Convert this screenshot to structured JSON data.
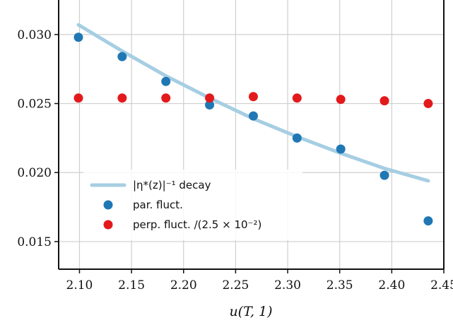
{
  "chart_data": {
    "type": "scatter",
    "title": "",
    "xlabel": "u(T, 1)",
    "ylabel": "",
    "xlim": [
      2.08,
      2.45
    ],
    "ylim": [
      0.013,
      0.0325
    ],
    "grid": true,
    "legend_placement": "lower-left",
    "xticks": [
      2.1,
      2.15,
      2.2,
      2.25,
      2.3,
      2.35,
      2.4,
      2.45
    ],
    "xtick_labels": [
      "2.10",
      "2.15",
      "2.20",
      "2.25",
      "2.30",
      "2.35",
      "2.40",
      "2.45"
    ],
    "yticks": [
      0.015,
      0.02,
      0.025,
      0.03
    ],
    "ytick_labels": [
      "0.015",
      "0.020",
      "0.025",
      "0.030"
    ],
    "series": [
      {
        "name": "|η*(z)|⁻¹ decay",
        "kind": "line",
        "color": "#a6cee3",
        "x": [
          2.099,
          2.141,
          2.183,
          2.225,
          2.267,
          2.309,
          2.351,
          2.393,
          2.435
        ],
        "y": [
          0.0307,
          0.0288,
          0.027,
          0.0254,
          0.0239,
          0.0226,
          0.0214,
          0.0203,
          0.0194
        ]
      },
      {
        "name": "par. fluct.",
        "kind": "scatter",
        "color": "#1f78b4",
        "x": [
          2.099,
          2.141,
          2.183,
          2.225,
          2.267,
          2.309,
          2.351,
          2.393,
          2.435
        ],
        "y": [
          0.0298,
          0.0284,
          0.0266,
          0.0249,
          0.0241,
          0.0225,
          0.0217,
          0.0198,
          0.0165
        ]
      },
      {
        "name": "perp. fluct. /(2.5 × 10⁻²)",
        "kind": "scatter",
        "color": "#e31a1c",
        "x": [
          2.099,
          2.141,
          2.183,
          2.225,
          2.267,
          2.309,
          2.351,
          2.393,
          2.435
        ],
        "y": [
          0.0254,
          0.0254,
          0.0254,
          0.0254,
          0.0255,
          0.0254,
          0.0253,
          0.0252,
          0.025
        ]
      }
    ]
  }
}
